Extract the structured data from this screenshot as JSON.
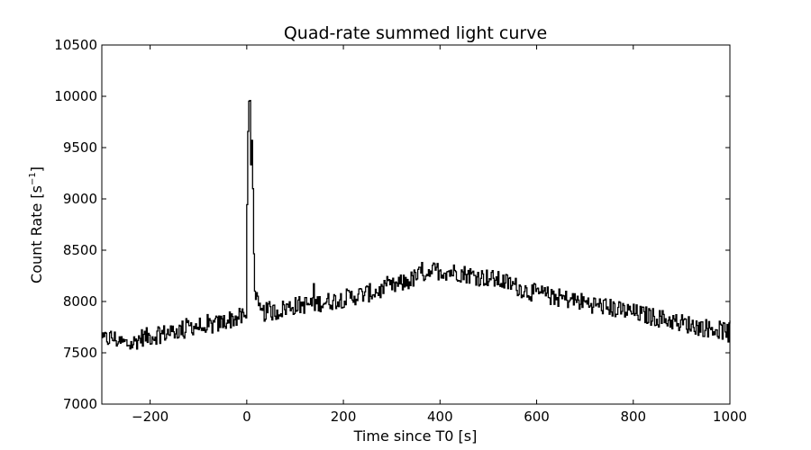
{
  "chart_data": {
    "type": "line",
    "title": "Quad-rate summed light curve",
    "xlabel": "Time since T0 [s]",
    "ylabel_main": "Count Rate [s",
    "ylabel_sup": "−1",
    "ylabel_end": "]",
    "xlim": [
      -300,
      1000
    ],
    "ylim": [
      7000,
      10500
    ],
    "xticks": [
      -200,
      0,
      200,
      400,
      600,
      800,
      1000
    ],
    "xtick_labels": [
      "−200",
      "0",
      "200",
      "400",
      "600",
      "800",
      "1000"
    ],
    "yticks": [
      7000,
      7500,
      8000,
      8500,
      9000,
      9500,
      10000,
      10500
    ],
    "ytick_labels": [
      "7000",
      "7500",
      "8000",
      "8500",
      "9000",
      "9500",
      "10000",
      "10500"
    ],
    "line_color": "#000000",
    "series": [
      {
        "x": [
          -300,
          -280,
          -260,
          -240,
          -220,
          -200,
          -180,
          -160,
          -140,
          -120,
          -100,
          -80,
          -60,
          -40,
          -20,
          -10,
          -4,
          -2,
          0,
          2,
          4,
          6,
          8,
          10,
          12,
          14,
          16,
          20,
          25,
          30,
          40,
          60,
          80,
          100,
          140,
          180,
          200,
          240,
          280,
          300,
          340,
          360,
          380,
          400,
          420,
          440,
          460,
          480,
          500,
          540,
          560,
          580,
          600,
          640,
          680,
          700,
          740,
          780,
          800,
          840,
          880,
          900,
          940,
          980,
          1000
        ],
        "y": [
          7620,
          7650,
          7600,
          7580,
          7650,
          7660,
          7680,
          7700,
          7720,
          7760,
          7760,
          7760,
          7780,
          7820,
          7840,
          7850,
          7860,
          7800,
          8900,
          9700,
          10000,
          10050,
          9400,
          9500,
          9100,
          8500,
          8200,
          8000,
          7900,
          7880,
          7900,
          7900,
          7940,
          7960,
          7980,
          8010,
          8030,
          8070,
          8110,
          8140,
          8210,
          8270,
          8300,
          8300,
          8290,
          8280,
          8260,
          8240,
          8230,
          8180,
          8140,
          8100,
          8080,
          8040,
          8010,
          7990,
          7950,
          7910,
          7890,
          7850,
          7810,
          7790,
          7750,
          7720,
          7710
        ]
      }
    ]
  }
}
